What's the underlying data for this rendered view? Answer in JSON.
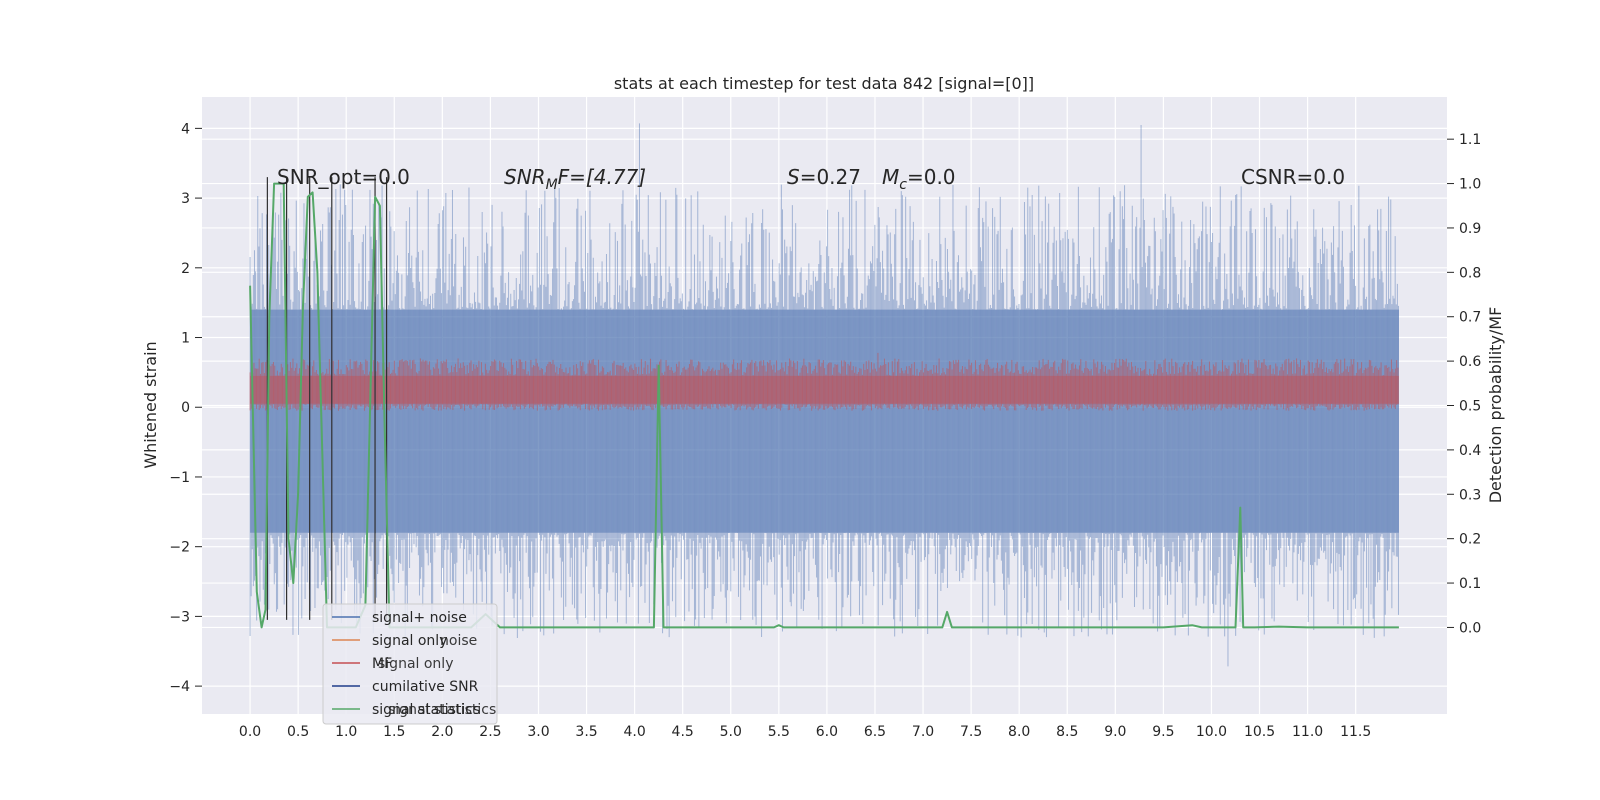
{
  "chart_data": {
    "type": "line",
    "title": "stats at each timestep for test data 842 [signal=[0]]",
    "xlabel": "",
    "ylabel": "Whitened strain",
    "y2label": "Detection probability/MF",
    "xlim": [
      -0.5,
      12.45
    ],
    "ylim": [
      -4.4,
      4.45
    ],
    "y2lim": [
      -0.195,
      1.195
    ],
    "x_ticks": [
      "0.0",
      "0.5",
      "1.0",
      "1.5",
      "2.0",
      "2.5",
      "3.0",
      "3.5",
      "4.0",
      "4.5",
      "5.0",
      "5.5",
      "6.0",
      "6.5",
      "7.0",
      "7.5",
      "8.0",
      "8.5",
      "9.0",
      "9.5",
      "10.0",
      "10.5",
      "11.0",
      "11.5"
    ],
    "y_ticks": [
      4,
      3,
      2,
      1,
      0,
      -1,
      -2,
      -3,
      -4
    ],
    "y_tick_labels": [
      "4",
      "3",
      "2",
      "1",
      "0",
      "−1",
      "−2",
      "−3",
      "−4"
    ],
    "y2_ticks": [
      "1.1",
      "1.0",
      "0.9",
      "0.8",
      "0.7",
      "0.6",
      "0.5",
      "0.4",
      "0.3",
      "0.2",
      "0.1",
      "0.0"
    ],
    "grid": true,
    "legend_position": "lower-left",
    "annotations": {
      "snr_opt": "SNR_opt=0.0",
      "snr_mf": "SNR",
      "snr_mf_sub": "M",
      "snr_mf_rest": "F=[4.77]",
      "s": "S",
      "s_rest": "=0.27",
      "mc": "M",
      "mc_sub": "c",
      "mc_rest": "=0.0",
      "csnr": "CSNR=0.0"
    },
    "legend": [
      {
        "label": "signal+ noise",
        "color": "#4c72b0"
      },
      {
        "label": "signal only",
        "color": "#dd8452"
      },
      {
        "label": "MF",
        "color": "#c44e52"
      },
      {
        "label": "cumilative SNR",
        "color": "#1f3d8a"
      },
      {
        "label": "signal statistics",
        "color": "#55a868"
      }
    ],
    "legend_ghost": [
      "noise",
      "signal only",
      "signal statistics"
    ],
    "series": [
      {
        "name": "signal+ noise",
        "axis": "left",
        "color": "#4c72b0",
        "band_x": [
          0.0,
          11.95
        ],
        "dense_band": [
          -1.8,
          1.4
        ],
        "spike_max": 4.1,
        "spike_min": -3.9
      },
      {
        "name": "MF",
        "axis": "left",
        "color": "#c44e52",
        "band_x": [
          0.0,
          11.95
        ],
        "dense_band": [
          0.05,
          0.45
        ],
        "spike_max": 0.85
      },
      {
        "name": "signal statistics",
        "axis": "right",
        "color": "#55a868",
        "x": [
          0.0,
          0.07,
          0.12,
          0.16,
          0.2,
          0.25,
          0.3,
          0.35,
          0.4,
          0.45,
          0.5,
          0.55,
          0.6,
          0.65,
          0.7,
          0.75,
          0.8,
          0.85,
          0.9,
          0.95,
          1.0,
          1.1,
          1.2,
          1.3,
          1.35,
          1.4,
          1.45,
          1.5,
          1.6,
          2.0,
          2.3,
          2.45,
          2.6,
          3.0,
          3.5,
          4.0,
          4.2,
          4.25,
          4.3,
          4.35,
          4.5,
          5.0,
          5.45,
          5.5,
          5.55,
          6.0,
          6.5,
          7.0,
          7.2,
          7.25,
          7.3,
          7.5,
          8.0,
          8.5,
          9.0,
          9.5,
          9.8,
          9.9,
          10.0,
          10.25,
          10.3,
          10.33,
          10.38,
          10.45,
          10.7,
          11.0,
          11.5,
          11.95
        ],
        "values": [
          0.77,
          0.08,
          0.0,
          0.04,
          0.7,
          1.0,
          1.0,
          1.0,
          0.2,
          0.1,
          0.3,
          0.72,
          0.97,
          0.98,
          0.8,
          0.4,
          0.0,
          0.0,
          0.0,
          0.0,
          0.0,
          0.0,
          0.05,
          0.97,
          0.95,
          0.45,
          0.0,
          0.0,
          0.0,
          0.0,
          0.0,
          0.03,
          0.0,
          0.0,
          0.0,
          0.0,
          0.0,
          0.59,
          0.0,
          0.0,
          0.0,
          0.0,
          0.0,
          0.005,
          0.0,
          0.0,
          0.0,
          0.0,
          0.0,
          0.035,
          0.0,
          0.0,
          0.0,
          0.0,
          0.0,
          0.0,
          0.005,
          0.0,
          0.0,
          0.0,
          0.27,
          0.0,
          0.0,
          0.0,
          0.002,
          0.0,
          0.0,
          0.0
        ]
      },
      {
        "name": "vertical markers",
        "axis": "left",
        "color": "#303030",
        "x": [
          0.18,
          0.38,
          0.62,
          0.85,
          1.3,
          1.42
        ],
        "y_top": [
          3.3,
          3.3,
          3.3,
          3.3,
          3.3,
          3.3
        ],
        "y_bottom": [
          -3.05,
          -3.05,
          -3.05,
          -3.05,
          -3.05,
          -3.05
        ]
      }
    ]
  }
}
